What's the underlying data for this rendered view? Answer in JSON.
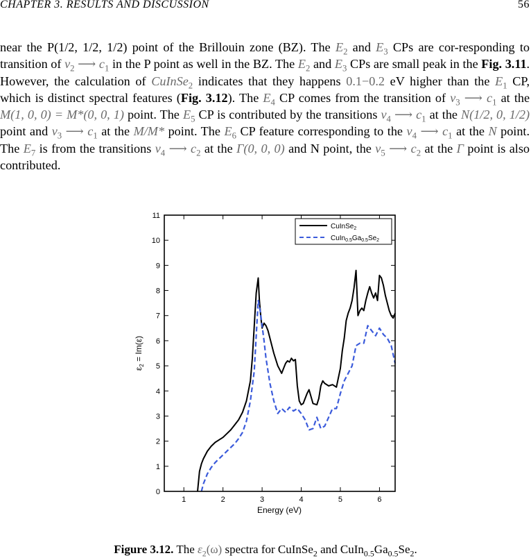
{
  "header": {
    "chapter": "CHAPTER 3.  RESULTS AND DISCUSSION",
    "page_number": "56"
  },
  "paragraph": {
    "s1": "near the P(1/2, 1/2, 1/2) point of the Brillouin zone (BZ). The",
    "s2": "and",
    "s3": "CPs are cor-responding to transition of",
    "s4": "in the P point as well in the BZ. The",
    "s5": "and",
    "s6": "CPs are small peak in the",
    "fig_ref_1": "Fig. 3.11",
    "s7": ". However, the calculation of",
    "s8": "indicates that they happens",
    "s9": "eV higher than the",
    "s10": "CP, which is distinct spectral features (",
    "fig_ref_2": "Fig. 3.12",
    "s11": ").  The",
    "s12": "CP comes from the transition of",
    "s13": "at the",
    "s14": "point.  The",
    "s15": "CP is contributed by the transitions",
    "s16": "at the",
    "s17": "point and",
    "s18": "at the",
    "s19": "point.  The",
    "s20": "CP feature corresponding to the",
    "s21": "at the",
    "s22": "point.  The",
    "s23": "is from the transitions",
    "s24": "at the",
    "s25": "and N point, the",
    "s26": "at the",
    "s27": "point is also contributed."
  },
  "math": {
    "E": "E",
    "two": "2",
    "three": "3",
    "one": "1",
    "four": "4",
    "five": "5",
    "six": "6",
    "seven": "7",
    "v": "v",
    "c": "c",
    "arrow": "⟶",
    "cuinse": "CuInSe",
    "range": "0.1−0.2",
    "M_point": "M(1, 0, 0) = M*(0, 0, 1)",
    "N_point": "N(1/2, 0, 1/2)",
    "MM_point": "M/M*",
    "N": "N",
    "Gamma_point": "Γ(0, 0, 0)",
    "Gamma": "Γ"
  },
  "caption": {
    "label": "Figure 3.12.",
    "text_1": "The",
    "eps": "ε",
    "eps_sub": "2",
    "eps_arg": "(ω)",
    "text_2": "spectra for CuInSe",
    "sub_2": "2",
    "text_3": "and CuIn",
    "sub_05a": "0.5",
    "text_4": "Ga",
    "sub_05b": "0.5",
    "text_5": "Se",
    "sub_2b": "2",
    "text_6": "."
  },
  "chart_data": {
    "type": "line",
    "xlabel": "Energy (eV)",
    "ylabel": "ε2 = Im(ε)",
    "xlim": [
      0.5,
      6.4
    ],
    "ylim": [
      0,
      11
    ],
    "xticks": [
      "1",
      "2",
      "3",
      "4",
      "5",
      "6"
    ],
    "yticks": [
      "0",
      "1",
      "2",
      "3",
      "4",
      "5",
      "6",
      "7",
      "8",
      "9",
      "10",
      "11"
    ],
    "legend_position": "top-right",
    "series": [
      {
        "name": "CuInSe2",
        "style": "solid",
        "color": "#000000",
        "x": [
          1.35,
          1.4,
          1.45,
          1.5,
          1.6,
          1.7,
          1.8,
          1.9,
          2.0,
          2.1,
          2.2,
          2.3,
          2.4,
          2.5,
          2.6,
          2.7,
          2.75,
          2.8,
          2.85,
          2.9,
          2.93,
          2.97,
          3.0,
          3.05,
          3.1,
          3.15,
          3.2,
          3.3,
          3.4,
          3.5,
          3.55,
          3.6,
          3.65,
          3.7,
          3.75,
          3.8,
          3.85,
          3.9,
          3.95,
          4.0,
          4.05,
          4.1,
          4.15,
          4.2,
          4.3,
          4.4,
          4.45,
          4.5,
          4.55,
          4.6,
          4.7,
          4.8,
          4.9,
          5.0,
          5.05,
          5.1,
          5.15,
          5.2,
          5.25,
          5.3,
          5.35,
          5.4,
          5.45,
          5.5,
          5.55,
          5.6,
          5.65,
          5.7,
          5.75,
          5.8,
          5.85,
          5.9,
          5.95,
          6.0,
          6.05,
          6.1,
          6.15,
          6.2,
          6.25,
          6.3,
          6.35,
          6.4
        ],
        "y": [
          0.0,
          0.8,
          1.1,
          1.3,
          1.6,
          1.8,
          1.95,
          2.05,
          2.15,
          2.3,
          2.45,
          2.65,
          2.85,
          3.15,
          3.6,
          4.4,
          5.3,
          6.6,
          7.9,
          8.5,
          7.6,
          6.9,
          6.5,
          6.7,
          6.6,
          6.4,
          6.1,
          5.5,
          5.0,
          4.7,
          4.9,
          5.1,
          5.2,
          5.15,
          5.3,
          5.2,
          5.25,
          4.2,
          3.6,
          3.45,
          3.5,
          3.7,
          3.9,
          4.05,
          3.5,
          3.45,
          3.7,
          4.2,
          4.4,
          4.3,
          4.2,
          4.25,
          4.15,
          4.9,
          5.6,
          6.1,
          6.8,
          7.1,
          7.3,
          7.6,
          8.1,
          8.8,
          7.0,
          7.2,
          7.3,
          7.2,
          7.6,
          7.9,
          8.15,
          7.9,
          7.7,
          7.9,
          7.6,
          8.6,
          8.5,
          8.2,
          7.8,
          7.5,
          7.2,
          7.0,
          6.9,
          7.1
        ]
      },
      {
        "name": "CuIn0.5Ga0.5Se2",
        "style": "dashed",
        "color": "#3b5bdb",
        "x": [
          1.45,
          1.5,
          1.55,
          1.6,
          1.7,
          1.8,
          1.9,
          2.0,
          2.1,
          2.2,
          2.3,
          2.4,
          2.5,
          2.6,
          2.7,
          2.8,
          2.85,
          2.9,
          2.95,
          3.0,
          3.05,
          3.1,
          3.2,
          3.3,
          3.4,
          3.5,
          3.6,
          3.7,
          3.8,
          3.9,
          4.0,
          4.1,
          4.2,
          4.3,
          4.4,
          4.5,
          4.6,
          4.7,
          4.8,
          4.9,
          5.0,
          5.1,
          5.2,
          5.3,
          5.4,
          5.5,
          5.6,
          5.7,
          5.8,
          5.9,
          6.0,
          6.1,
          6.2,
          6.3,
          6.4
        ],
        "y": [
          0.0,
          0.3,
          0.5,
          0.7,
          0.95,
          1.15,
          1.3,
          1.45,
          1.6,
          1.75,
          1.9,
          2.1,
          2.35,
          2.8,
          3.6,
          4.8,
          6.2,
          7.6,
          7.2,
          6.6,
          6.0,
          5.3,
          4.3,
          3.6,
          3.1,
          3.3,
          3.15,
          3.35,
          3.2,
          3.3,
          3.1,
          2.85,
          2.45,
          2.5,
          2.95,
          2.5,
          2.6,
          2.95,
          3.3,
          3.3,
          3.9,
          4.4,
          4.7,
          5.0,
          5.8,
          5.9,
          5.9,
          6.6,
          6.4,
          6.2,
          6.5,
          6.25,
          6.1,
          5.8,
          5.1
        ]
      }
    ]
  }
}
